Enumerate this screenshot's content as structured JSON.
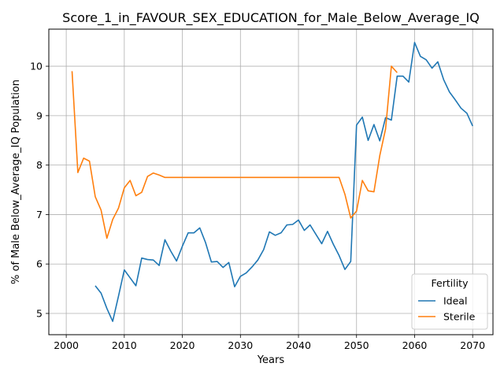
{
  "chart_data": {
    "type": "line",
    "title": "Score_1_in_FAVOUR_SEX_EDUCATION_for_Male_Below_Average_IQ",
    "xlabel": "Years",
    "ylabel": "% of Male Below_Average_IQ Population",
    "xlim": [
      1997,
      2073.5
    ],
    "ylim": [
      4.57,
      10.75
    ],
    "xticks": [
      2000,
      2010,
      2020,
      2030,
      2040,
      2050,
      2060,
      2070
    ],
    "yticks": [
      5,
      6,
      7,
      8,
      9,
      10
    ],
    "grid": true,
    "legend": {
      "title": "Fertility",
      "placement": "lower-right"
    },
    "series": [
      {
        "name": "Ideal",
        "color": "#1f77b4",
        "x": [
          2005,
          2006,
          2007,
          2008,
          2009,
          2010,
          2011,
          2012,
          2013,
          2014,
          2015,
          2016,
          2017,
          2018,
          2019,
          2020,
          2021,
          2022,
          2023,
          2024,
          2025,
          2026,
          2027,
          2028,
          2029,
          2030,
          2031,
          2032,
          2033,
          2034,
          2035,
          2036,
          2037,
          2038,
          2039,
          2040,
          2041,
          2042,
          2043,
          2044,
          2045,
          2046,
          2047,
          2048,
          2049,
          2050,
          2051,
          2052,
          2053,
          2054,
          2055,
          2056,
          2057,
          2058,
          2059,
          2060,
          2061,
          2062,
          2063,
          2064,
          2065,
          2066,
          2067,
          2068,
          2069,
          2070
        ],
        "values": [
          5.56,
          5.41,
          5.1,
          4.84,
          5.35,
          5.88,
          5.72,
          5.56,
          6.12,
          6.09,
          6.08,
          5.97,
          6.49,
          6.26,
          6.06,
          6.36,
          6.63,
          6.63,
          6.73,
          6.43,
          6.04,
          6.05,
          5.93,
          6.03,
          5.54,
          5.75,
          5.82,
          5.94,
          6.08,
          6.29,
          6.65,
          6.58,
          6.63,
          6.79,
          6.8,
          6.89,
          6.68,
          6.79,
          6.6,
          6.41,
          6.66,
          6.4,
          6.17,
          5.89,
          6.05,
          8.81,
          8.97,
          8.5,
          8.82,
          8.49,
          8.96,
          8.91,
          9.8,
          9.8,
          9.68,
          10.48,
          10.2,
          10.13,
          9.96,
          10.09,
          9.73,
          9.48,
          9.32,
          9.15,
          9.05,
          8.79
        ]
      },
      {
        "name": "Sterile",
        "color": "#ff7f0e",
        "x": [
          2001,
          2002,
          2003,
          2004,
          2005,
          2006,
          2007,
          2008,
          2009,
          2010,
          2011,
          2012,
          2013,
          2014,
          2015,
          2016,
          2017,
          2018,
          2019,
          2020,
          2021,
          2022,
          2023,
          2024,
          2025,
          2026,
          2027,
          2028,
          2029,
          2030,
          2031,
          2032,
          2033,
          2034,
          2035,
          2036,
          2037,
          2038,
          2039,
          2040,
          2041,
          2042,
          2043,
          2044,
          2045,
          2046,
          2047,
          2048,
          2049,
          2050,
          2051,
          2052,
          2053,
          2054,
          2055,
          2056,
          2057
        ],
        "values": [
          9.9,
          7.85,
          8.14,
          8.08,
          7.36,
          7.09,
          6.52,
          6.9,
          7.13,
          7.54,
          7.69,
          7.38,
          7.45,
          7.77,
          7.84,
          7.8,
          7.75,
          7.75,
          7.75,
          7.75,
          7.75,
          7.75,
          7.75,
          7.75,
          7.75,
          7.75,
          7.75,
          7.75,
          7.75,
          7.75,
          7.75,
          7.75,
          7.75,
          7.75,
          7.75,
          7.75,
          7.75,
          7.75,
          7.75,
          7.75,
          7.75,
          7.75,
          7.75,
          7.75,
          7.75,
          7.75,
          7.75,
          7.41,
          6.93,
          7.07,
          7.69,
          7.48,
          7.46,
          8.19,
          8.73,
          10.0,
          9.87
        ]
      }
    ]
  }
}
